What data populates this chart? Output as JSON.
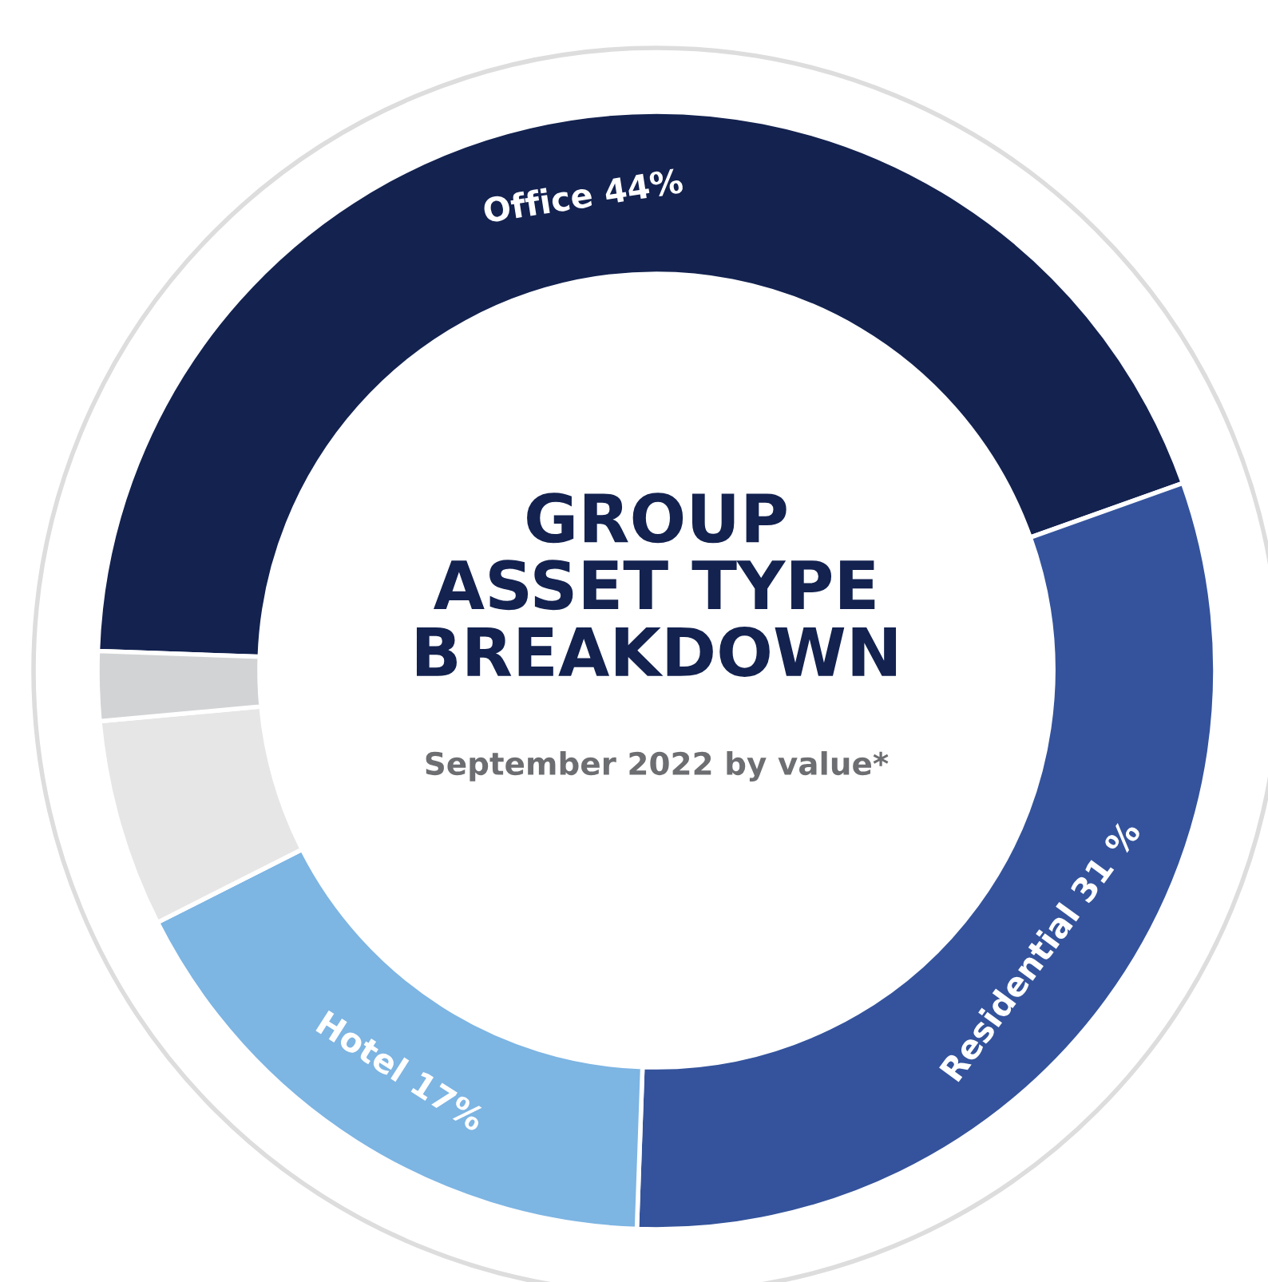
{
  "chart_data": {
    "type": "donut",
    "title": "GROUP\nASSET TYPE\nBREAKDOWN",
    "subtitle": "September 2022 by value*",
    "categories": [
      "Office",
      "Residential",
      "Hotel",
      null,
      null
    ],
    "values": [
      44,
      31,
      17,
      6,
      2
    ],
    "value_labels": [
      "44%",
      "31 %",
      "17%",
      null,
      null
    ],
    "colors": [
      "#13224f",
      "#34539c",
      "#7db5e3",
      "#e6e6e6",
      "#d2d3d5"
    ],
    "legend": false
  }
}
